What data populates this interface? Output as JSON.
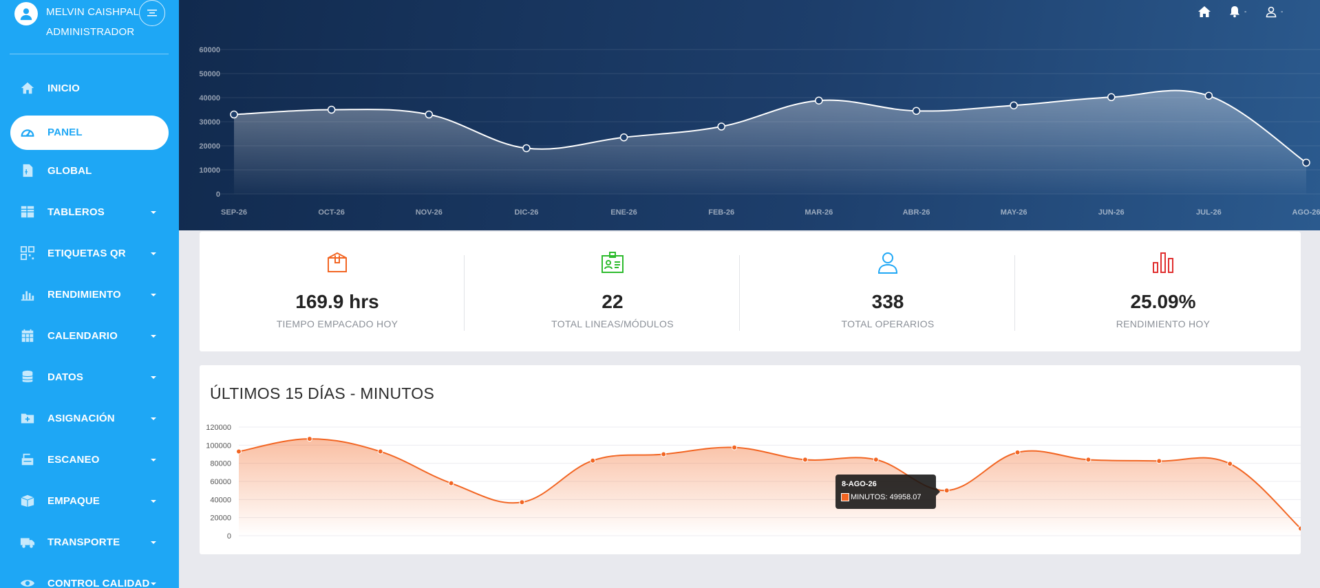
{
  "user": {
    "name": "MELVIN CAISHPAL",
    "role": "ADMINISTRADOR"
  },
  "sidebar": {
    "items": [
      {
        "label": "INICIO",
        "icon": "home-icon",
        "has_caret": false,
        "active": false
      },
      {
        "label": "PANEL",
        "icon": "dashboard-gauge-icon",
        "has_caret": false,
        "active": true
      },
      {
        "label": "GLOBAL",
        "icon": "document-icon",
        "has_caret": false,
        "active": false
      },
      {
        "label": "TABLEROS",
        "icon": "grid-icon",
        "has_caret": true,
        "active": false
      },
      {
        "label": "ETIQUETAS QR",
        "icon": "qr-code-icon",
        "has_caret": true,
        "active": false
      },
      {
        "label": "RENDIMIENTO",
        "icon": "bar-chart-icon",
        "has_caret": true,
        "active": false
      },
      {
        "label": "CALENDARIO",
        "icon": "calendar-icon",
        "has_caret": true,
        "active": false
      },
      {
        "label": "DATOS",
        "icon": "database-icon",
        "has_caret": true,
        "active": false
      },
      {
        "label": "ASIGNACIÓN",
        "icon": "folder-plus-icon",
        "has_caret": true,
        "active": false
      },
      {
        "label": "ESCANEO",
        "icon": "scanner-icon",
        "has_caret": true,
        "active": false
      },
      {
        "label": "EMPAQUE",
        "icon": "box-icon",
        "has_caret": true,
        "active": false
      },
      {
        "label": "TRANSPORTE",
        "icon": "truck-icon",
        "has_caret": true,
        "active": false
      },
      {
        "label": "CONTROL CALIDAD",
        "icon": "eye-icon",
        "has_caret": true,
        "active": false
      }
    ]
  },
  "topbar": {
    "icons": [
      "home-icon",
      "bell-icon",
      "user-icon"
    ],
    "dropdown_marker": "-"
  },
  "stats": [
    {
      "value": "169.9 hrs",
      "label": "TIEMPO EMPACADO HOY",
      "icon": "package-icon",
      "color": "#f26522"
    },
    {
      "value": "22",
      "label": "TOTAL LINEAS/MÓDULOS",
      "icon": "id-badge-icon",
      "color": "#2dbb2d"
    },
    {
      "value": "338",
      "label": "TOTAL OPERARIOS",
      "icon": "person-icon",
      "color": "#1ea7f5"
    },
    {
      "value": "25.09%",
      "label": "RENDIMIENTO HOY",
      "icon": "bar-chart-icon",
      "color": "#e02f2f"
    }
  ],
  "colors": {
    "sidebar": "#1ea7f5",
    "header_dark": "#112a4e",
    "header_light": "#2b5a8e",
    "accent_orange": "#f26522"
  },
  "card2": {
    "title": "ÚLTIMOS 15 DÍAS - MINUTOS",
    "tooltip": {
      "title": "8-AGO-26",
      "series": "MINUTOS",
      "value": "49958.07"
    }
  },
  "chart_data": [
    {
      "type": "area",
      "categories": [
        "SEP-26",
        "OCT-26",
        "NOV-26",
        "DIC-26",
        "ENE-26",
        "FEB-26",
        "MAR-26",
        "ABR-26",
        "MAY-26",
        "JUN-26",
        "JUL-26",
        "AGO-26"
      ],
      "values": [
        33000,
        35000,
        33000,
        19000,
        23500,
        28000,
        38800,
        34500,
        36800,
        40200,
        40800,
        13000
      ],
      "yticks": [
        0,
        10000,
        20000,
        30000,
        40000,
        50000,
        60000
      ],
      "ylim": [
        0,
        60000
      ],
      "grid": true,
      "line_color": "#ffffff"
    },
    {
      "type": "area",
      "title": "ÚLTIMOS 15 DÍAS - MINUTOS",
      "series": [
        {
          "name": "MINUTOS",
          "values": [
            93000,
            107000,
            93000,
            58000,
            37000,
            83000,
            90000,
            97500,
            84000,
            84000,
            49958.07,
            92000,
            84000,
            82500,
            79500,
            8000
          ]
        }
      ],
      "yticks": [
        0,
        20000,
        40000,
        60000,
        80000,
        100000,
        120000
      ],
      "ylim": [
        0,
        120000
      ],
      "grid": true,
      "line_color": "#f26522"
    }
  ]
}
